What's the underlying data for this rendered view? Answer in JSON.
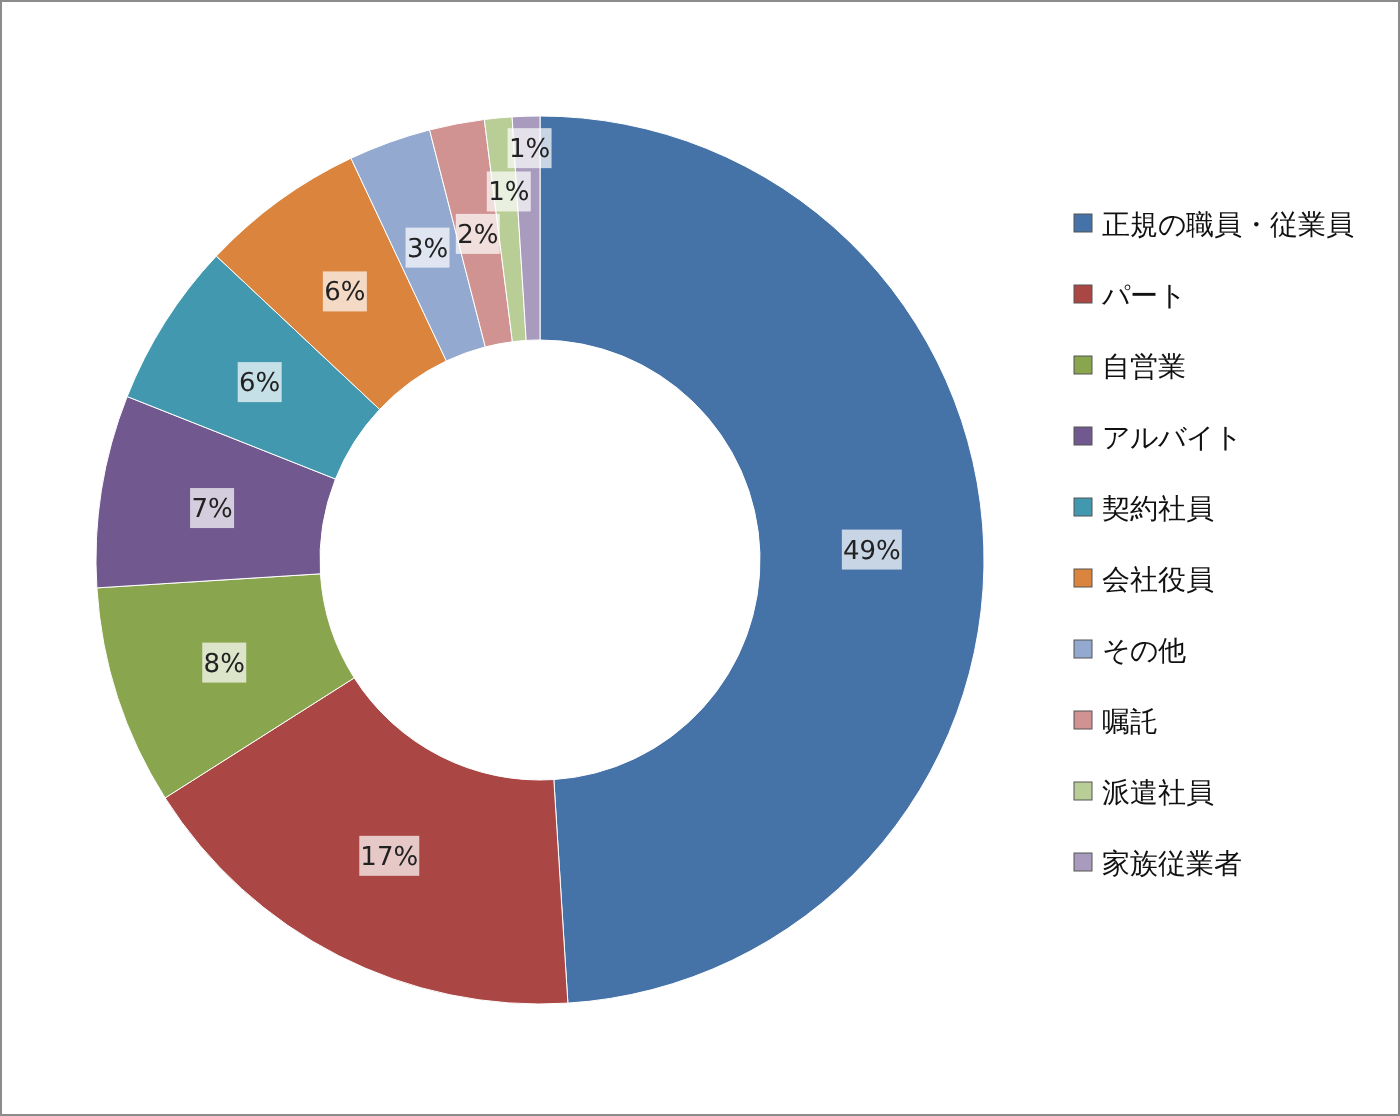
{
  "chart_data": {
    "type": "donut",
    "categories": [
      "正規の職員・従業員",
      "パート",
      "自営業",
      "アルバイト",
      "契約社員",
      "会社役員",
      "その他",
      "嘱託",
      "派遣社員",
      "家族従業者"
    ],
    "values": [
      49,
      17,
      8,
      7,
      6,
      6,
      3,
      2,
      1,
      1
    ],
    "value_labels": [
      "49%",
      "17%",
      "8%",
      "7%",
      "6%",
      "6%",
      "3%",
      "2%",
      "1%",
      "1%"
    ],
    "colors": [
      "#4572a7",
      "#aa4643",
      "#89a54e",
      "#71588f",
      "#4198af",
      "#db843d",
      "#93a9cf",
      "#d19392",
      "#b9cd96",
      "#a99bbd"
    ],
    "legend": "right"
  }
}
